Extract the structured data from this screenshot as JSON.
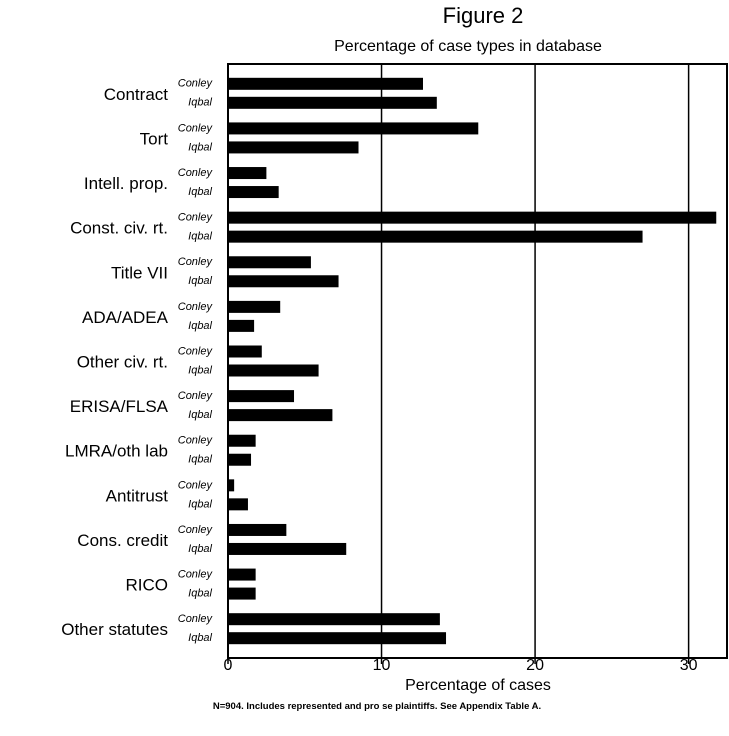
{
  "chart_data": {
    "type": "bar",
    "orientation": "horizontal",
    "title": "Figure 2",
    "subtitle": "Percentage of case types in database",
    "xlabel": "Percentage of cases",
    "ylabel": "",
    "xlim": [
      0,
      32.5
    ],
    "xticks": [
      0,
      10,
      20,
      30
    ],
    "grid": "vertical lines at 10, 20, 30",
    "legend": "none (series names printed beside each bar)",
    "categories": [
      "Contract",
      "Tort",
      "Intell. prop.",
      "Const. civ. rt.",
      "Title VII",
      "ADA/ADEA",
      "Other civ. rt.",
      "ERISA/FLSA",
      "LMRA/oth lab",
      "Antitrust",
      "Cons. credit",
      "RICO",
      "Other statutes"
    ],
    "series": [
      {
        "name": "Conley",
        "values": [
          12.7,
          16.3,
          2.5,
          31.8,
          5.4,
          3.4,
          2.2,
          4.3,
          1.8,
          0.4,
          3.8,
          1.8,
          13.8
        ]
      },
      {
        "name": "Iqbal",
        "values": [
          13.6,
          8.5,
          3.3,
          27.0,
          7.2,
          1.7,
          5.9,
          6.8,
          1.5,
          1.3,
          7.7,
          1.8,
          14.2
        ]
      }
    ],
    "bar_color": "#000000",
    "footnote": "N=904.  Includes represented and pro se plaintiffs.  See Appendix Table A."
  }
}
